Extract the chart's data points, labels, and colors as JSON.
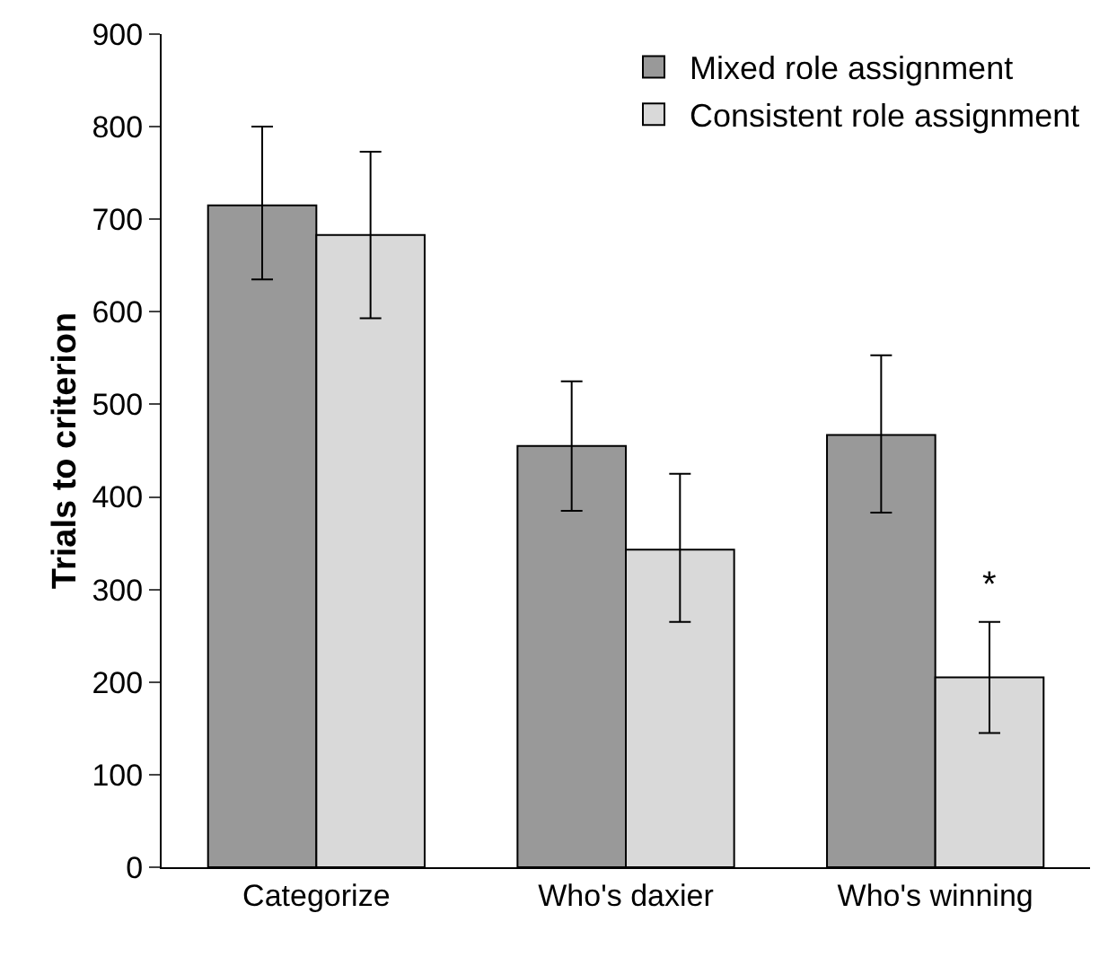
{
  "chart_data": {
    "type": "bar",
    "ylabel": "Trials to criterion",
    "categories": [
      "Categorize",
      "Who's daxier",
      "Who's winning"
    ],
    "series": [
      {
        "name": "Mixed role assignment",
        "color": "#999999",
        "values": [
          715,
          455,
          467
        ],
        "errors": [
          [
            635,
            800
          ],
          [
            385,
            525
          ],
          [
            383,
            553
          ]
        ]
      },
      {
        "name": "Consistent role assignment",
        "color": "#d9d9d9",
        "values": [
          683,
          343,
          205
        ],
        "errors": [
          [
            593,
            773
          ],
          [
            265,
            425
          ],
          [
            145,
            265
          ]
        ]
      }
    ],
    "ylim": [
      0,
      900
    ],
    "yticks": [
      0,
      100,
      200,
      300,
      400,
      500,
      600,
      700,
      800,
      900
    ],
    "grid": false,
    "legend": "top right",
    "annotations": [
      {
        "text": "*",
        "x": "Who's winning",
        "y": 305
      }
    ]
  }
}
